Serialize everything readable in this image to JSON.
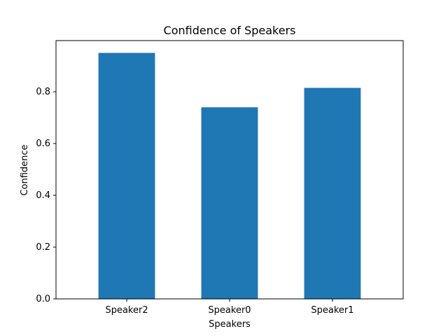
{
  "chart_data": {
    "type": "bar",
    "title": "Confidence of Speakers",
    "xlabel": "Speakers",
    "ylabel": "Confidence",
    "categories": [
      "Speaker2",
      "Speaker0",
      "Speaker1"
    ],
    "values": [
      0.95,
      0.74,
      0.815
    ],
    "ylim": [
      0,
      0.9975
    ],
    "yticks": [
      0.0,
      0.2,
      0.4,
      0.6,
      0.8
    ],
    "ytick_labels": [
      "0.0",
      "0.2",
      "0.4",
      "0.6",
      "0.8"
    ],
    "bar_color": "#1f77b4",
    "grid": false,
    "legend": "none"
  }
}
